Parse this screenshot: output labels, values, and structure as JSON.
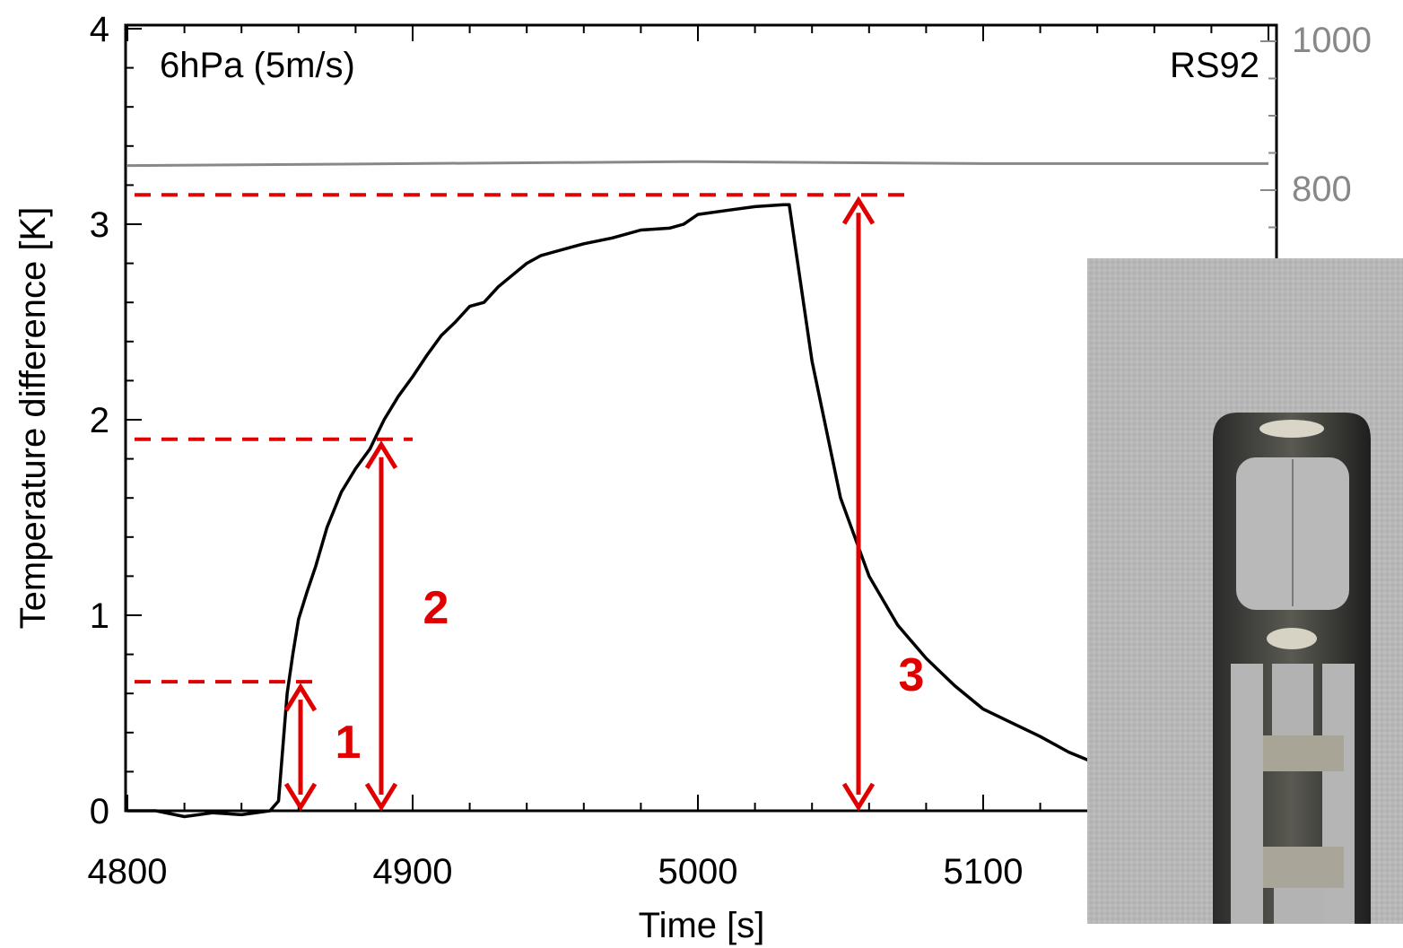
{
  "chart_data": {
    "type": "line",
    "title": "",
    "xlabel": "Time [s]",
    "ylabel": "Temperature difference [K]",
    "xlim": [
      4800,
      5200
    ],
    "ylim": [
      0,
      4
    ],
    "xticks": [
      4800,
      4900,
      5000,
      5100
    ],
    "yticks": [
      0,
      1,
      2,
      3,
      4
    ],
    "y2ticks": [
      1000,
      800
    ],
    "grid": false,
    "annotations": {
      "condition": "6hPa (5m/s)",
      "sensor": "RS92",
      "markers": [
        "1",
        "2",
        "3"
      ]
    },
    "series": [
      {
        "color": "#000000",
        "x": [
          4800,
          4810,
          4820,
          4830,
          4840,
          4850,
          4853,
          4856,
          4858,
          4860,
          4863,
          4866,
          4870,
          4875,
          4880,
          4885,
          4890,
          4895,
          4900,
          4905,
          4910,
          4915,
          4920,
          4925,
          4930,
          4935,
          4940,
          4945,
          4950,
          4960,
          4970,
          4980,
          4990,
          4995,
          5000,
          5010,
          5020,
          5030,
          5032,
          5034,
          5040,
          5050,
          5060,
          5070,
          5080,
          5090,
          5100,
          5110,
          5120,
          5130,
          5140
        ],
        "y": [
          0.0,
          0.0,
          -0.03,
          -0.01,
          -0.02,
          0.0,
          0.05,
          0.6,
          0.8,
          0.98,
          1.12,
          1.25,
          1.45,
          1.63,
          1.75,
          1.85,
          2.0,
          2.12,
          2.22,
          2.33,
          2.43,
          2.5,
          2.58,
          2.6,
          2.68,
          2.74,
          2.8,
          2.84,
          2.86,
          2.9,
          2.93,
          2.97,
          2.98,
          3.0,
          3.05,
          3.07,
          3.09,
          3.1,
          3.1,
          2.9,
          2.3,
          1.6,
          1.2,
          0.95,
          0.78,
          0.64,
          0.52,
          0.45,
          0.38,
          0.3,
          0.24
        ]
      },
      {
        "name": "",
        "color": "#888888",
        "x": [
          4800,
          4900,
          5000,
          5100,
          5200
        ],
        "y": [
          3.3,
          3.31,
          3.32,
          3.31,
          3.31
        ]
      }
    ],
    "reference_levels": [
      0.66,
      1.9,
      3.15
    ],
    "zero_line": 0
  },
  "inset_photo": {
    "icon": "sensor-photo-icon"
  }
}
